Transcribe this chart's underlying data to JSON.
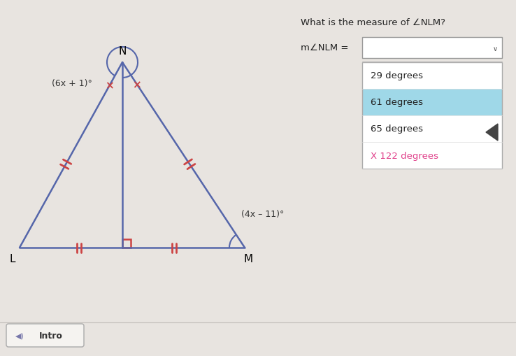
{
  "bg_color": "#e8e4e0",
  "panel_bg": "#f0ede8",
  "title_text": "What is the measure of ∠NLM?",
  "dropdown_label": "m∠NLM =",
  "dropdown_options": [
    "29 degrees",
    "61 degrees",
    "65 degrees",
    "X 122 degrees"
  ],
  "dropdown_highlight": 1,
  "dropdown_highlight_color": "#9fd8e8",
  "dropdown_wrong_color": "#e0408a",
  "triangle_color": "#5566aa",
  "tick_color": "#cc4444",
  "right_angle_color": "#cc4444",
  "arc_color": "#5566aa",
  "label_L": "L",
  "label_M": "M",
  "label_N": "N",
  "angle_label_top": "(6x + 1)°",
  "angle_label_right": "(4x – 11)°",
  "intro_button": "Intro",
  "L": [
    0.28,
    1.55
  ],
  "M": [
    3.5,
    1.55
  ],
  "N": [
    1.75,
    4.2
  ],
  "P": [
    1.75,
    1.55
  ]
}
